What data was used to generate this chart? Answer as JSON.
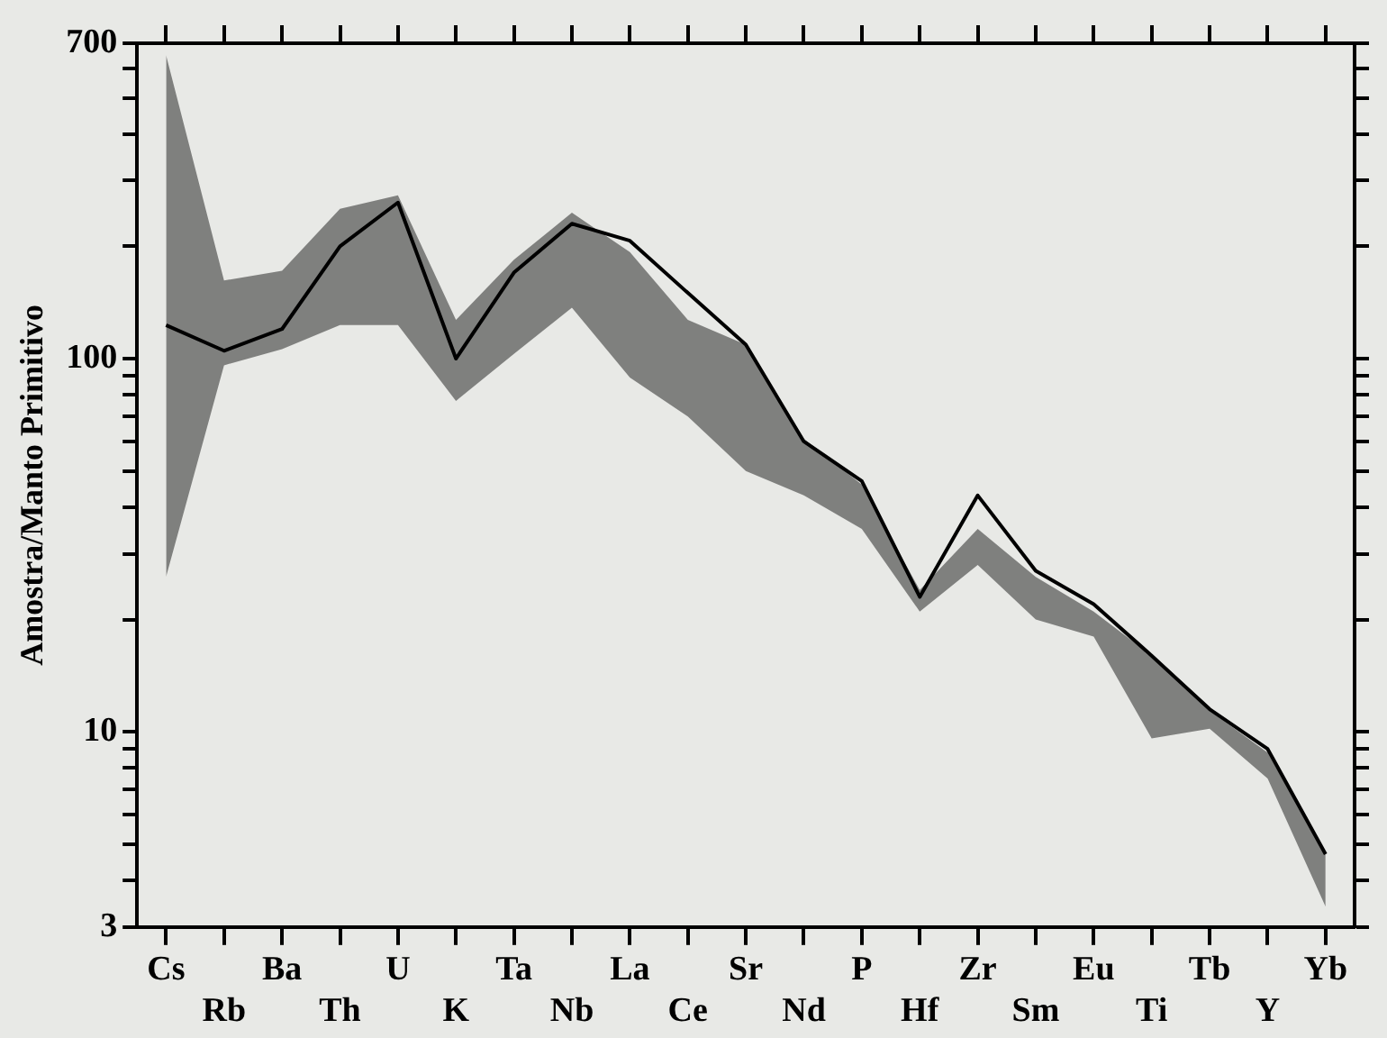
{
  "chart_data": {
    "type": "line",
    "ylabel": "Amostra/Manto Primitivo",
    "categories": [
      "Cs",
      "Rb",
      "Ba",
      "Th",
      "U",
      "K",
      "Ta",
      "Nb",
      "La",
      "Ce",
      "Sr",
      "Nd",
      "P",
      "Hf",
      "Zr",
      "Sm",
      "Eu",
      "Ti",
      "Tb",
      "Y",
      "Yb"
    ],
    "series": [
      {
        "color": "#000000",
        "values": [
          123,
          105,
          120,
          200,
          262,
          100,
          170,
          230,
          207,
          150,
          109,
          60,
          47,
          23,
          43,
          27,
          22,
          16,
          11.5,
          9,
          4.7
        ],
        "upper": [
          650,
          162,
          172,
          252,
          274,
          127,
          184,
          246,
          193,
          127,
          109,
          61,
          46,
          24,
          35,
          26,
          21,
          16,
          11.4,
          8.8,
          4.7
        ],
        "lower": [
          26,
          96,
          106,
          123,
          123,
          77,
          103,
          137,
          89,
          70,
          50,
          43,
          35,
          21,
          28,
          20,
          18,
          9.6,
          10.2,
          7.5,
          3.4
        ]
      }
    ],
    "log": "y",
    "ylim": [
      3,
      700
    ],
    "yticks": [
      3,
      {
        "value": 4,
        "label": null
      },
      {
        "value": 5,
        "label": null
      },
      {
        "value": 6,
        "label": null
      },
      {
        "value": 7,
        "label": null
      },
      {
        "value": 8,
        "label": null
      },
      {
        "value": 9,
        "label": null
      },
      10,
      {
        "value": 20,
        "label": null
      },
      {
        "value": 30,
        "label": null
      },
      {
        "value": 40,
        "label": null
      },
      {
        "value": 50,
        "label": null
      },
      {
        "value": 60,
        "label": null
      },
      {
        "value": 70,
        "label": null
      },
      {
        "value": 80,
        "label": null
      },
      {
        "value": 90,
        "label": null
      },
      100,
      {
        "value": 200,
        "label": null
      },
      {
        "value": 300,
        "label": null
      },
      {
        "value": 400,
        "label": null
      },
      {
        "value": 500,
        "label": null
      },
      {
        "value": 600,
        "label": null
      },
      700
    ],
    "grid": false,
    "legend": false,
    "marker": "none",
    "line_style": "solid"
  }
}
